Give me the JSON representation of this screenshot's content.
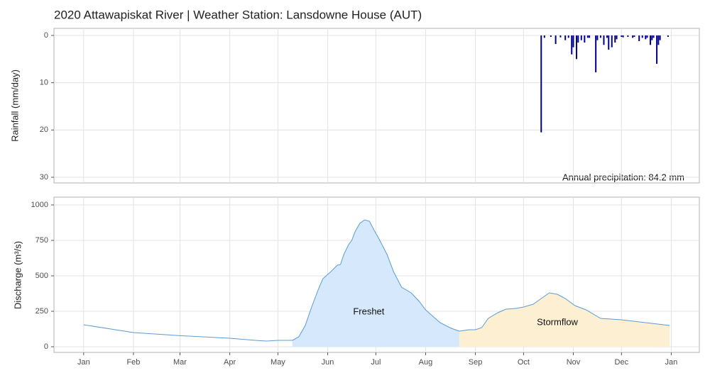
{
  "chart_data": [
    {
      "type": "bar",
      "title": "2020 Attawapiskat River | Weather Station: Lansdowne House (AUT)",
      "y_label": "Rainfall (mm/day)",
      "annotation": "Annual precipitation: 84.2 mm",
      "color": "#00008b",
      "reverse_y": true,
      "grid": true,
      "ylim": [
        -1.5,
        31.2
      ],
      "yticks": [
        0,
        10,
        20,
        30
      ],
      "x": [
        286,
        288,
        292,
        295,
        298,
        301,
        303,
        305,
        306,
        308,
        309,
        311,
        313,
        315,
        316,
        320,
        321,
        323,
        325,
        327,
        328,
        330,
        332,
        333,
        336,
        337,
        340,
        343,
        344,
        347,
        349,
        351,
        352,
        354,
        355,
        356,
        358,
        359,
        360,
        365
      ],
      "values": [
        20.5,
        0.5,
        0.3,
        1.8,
        0.4,
        1.0,
        0.5,
        4.0,
        2.5,
        5.0,
        1.5,
        1.0,
        1.5,
        0.5,
        0.5,
        7.8,
        1.0,
        0.5,
        2.0,
        0.5,
        3.0,
        2.5,
        1.5,
        0.8,
        0.3,
        0.4,
        0.3,
        0.5,
        0.3,
        1.2,
        0.5,
        0.8,
        0.5,
        2.0,
        1.0,
        0.5,
        6.0,
        2.0,
        1.0,
        0.3
      ]
    },
    {
      "type": "line",
      "y_label": "Discharge (m³/s)",
      "color": "#5b9bd5",
      "grid": true,
      "xlim": [
        -17.5,
        384.5
      ],
      "xticks": [
        {
          "value": 1,
          "label": "Jan"
        },
        {
          "value": 32,
          "label": "Feb"
        },
        {
          "value": 61,
          "label": "Mar"
        },
        {
          "value": 92,
          "label": "Apr"
        },
        {
          "value": 122,
          "label": "May"
        },
        {
          "value": 153,
          "label": "Jun"
        },
        {
          "value": 183,
          "label": "Jul"
        },
        {
          "value": 214,
          "label": "Aug"
        },
        {
          "value": 245,
          "label": "Sep"
        },
        {
          "value": 275,
          "label": "Oct"
        },
        {
          "value": 306,
          "label": "Nov"
        },
        {
          "value": 336,
          "label": "Dec"
        },
        {
          "value": 367,
          "label": "Jan"
        }
      ],
      "ylim": [
        -40,
        1055
      ],
      "yticks": [
        0,
        250,
        500,
        750,
        1000
      ],
      "x": [
        1,
        32,
        61,
        92,
        108,
        115,
        122,
        131,
        135,
        139,
        143,
        147,
        150,
        155,
        159,
        161,
        163,
        166,
        168,
        170,
        173,
        176,
        179,
        182,
        185,
        190,
        194,
        199,
        202,
        205,
        210,
        214,
        219,
        223,
        230,
        235,
        241,
        245,
        249,
        253,
        259,
        264,
        270,
        275,
        281,
        286,
        291,
        296,
        301,
        307,
        314,
        323,
        336,
        351,
        366
      ],
      "values": [
        155,
        100,
        78,
        60,
        45,
        40,
        45,
        45,
        70,
        150,
        280,
        400,
        480,
        530,
        575,
        580,
        650,
        720,
        750,
        810,
        870,
        895,
        885,
        820,
        760,
        650,
        530,
        420,
        400,
        380,
        320,
        260,
        210,
        170,
        130,
        110,
        120,
        120,
        135,
        200,
        240,
        265,
        270,
        280,
        300,
        340,
        380,
        370,
        340,
        290,
        260,
        200,
        190,
        170,
        150
      ],
      "regions": [
        {
          "name": "Freshet",
          "start": 131,
          "end": 235,
          "color": "#d6e8fb"
        },
        {
          "name": "Stormflow",
          "start": 235,
          "end": 366,
          "color": "#fdf0d2"
        }
      ]
    }
  ]
}
